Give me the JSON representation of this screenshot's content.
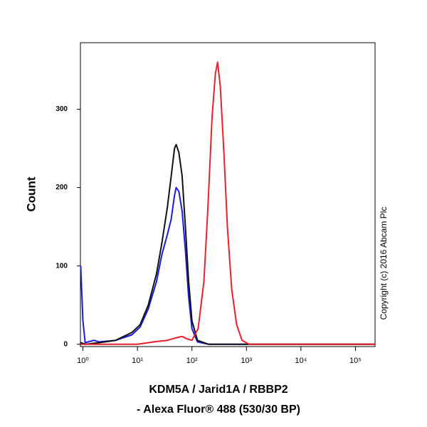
{
  "chart_data": {
    "type": "line",
    "ylabel": "Count",
    "xlabel": [
      "KDM5A / Jarid1A / RBBP2",
      "- Alexa Fluor® 488 (530/30 BP)"
    ],
    "annotation": "Copyright (c) 2016 Abcam Plc",
    "xscale": "log",
    "xlim": [
      0.9,
      229000
    ],
    "ylim": [
      -3,
      385
    ],
    "xticks": [
      {
        "value": 1,
        "label": "10⁰"
      },
      {
        "value": 10,
        "label": "10¹"
      },
      {
        "value": 100,
        "label": "10²"
      },
      {
        "value": 1000,
        "label": "10³"
      },
      {
        "value": 10000,
        "label": "10⁴"
      },
      {
        "value": 100000,
        "label": "10⁵"
      }
    ],
    "yticks": [
      0,
      100,
      200,
      300
    ],
    "grid": false,
    "series": [
      {
        "color": "#1a1adc",
        "x": [
          0.91,
          1.0,
          1.1,
          1.6,
          2,
          4,
          7.9,
          11.2,
          15.8,
          22.4,
          28.2,
          35.5,
          41.7,
          47.9,
          51.3,
          57.5,
          66.1,
          75.9,
          87.1,
          100,
          126,
          200,
          229000
        ],
        "values": [
          100,
          30,
          2,
          5,
          3,
          5,
          12,
          22,
          45,
          80,
          115,
          140,
          160,
          190,
          200,
          195,
          170,
          120,
          60,
          20,
          3,
          0,
          0
        ]
      },
      {
        "color": "#111111",
        "x": [
          0.91,
          1.12,
          2,
          4,
          7.9,
          11.2,
          15.8,
          22.4,
          28.2,
          35.5,
          41.7,
          47.9,
          51.3,
          57.5,
          66.1,
          75.9,
          87.1,
          100,
          126,
          200,
          229000
        ],
        "values": [
          2,
          0,
          2,
          5,
          15,
          25,
          50,
          90,
          130,
          175,
          215,
          250,
          255,
          245,
          215,
          150,
          80,
          30,
          5,
          0,
          0
        ]
      },
      {
        "color": "#e8202a",
        "x": [
          0.91,
          10,
          20,
          35.5,
          50,
          66,
          80,
          100,
          130,
          166,
          195,
          234,
          269,
          295,
          331,
          389,
          447,
          537,
          661,
          832,
          1122,
          229000
        ],
        "values": [
          0,
          0,
          3,
          5,
          8,
          10,
          7,
          5,
          20,
          80,
          170,
          290,
          345,
          360,
          330,
          240,
          150,
          70,
          25,
          5,
          0,
          0
        ]
      }
    ]
  }
}
